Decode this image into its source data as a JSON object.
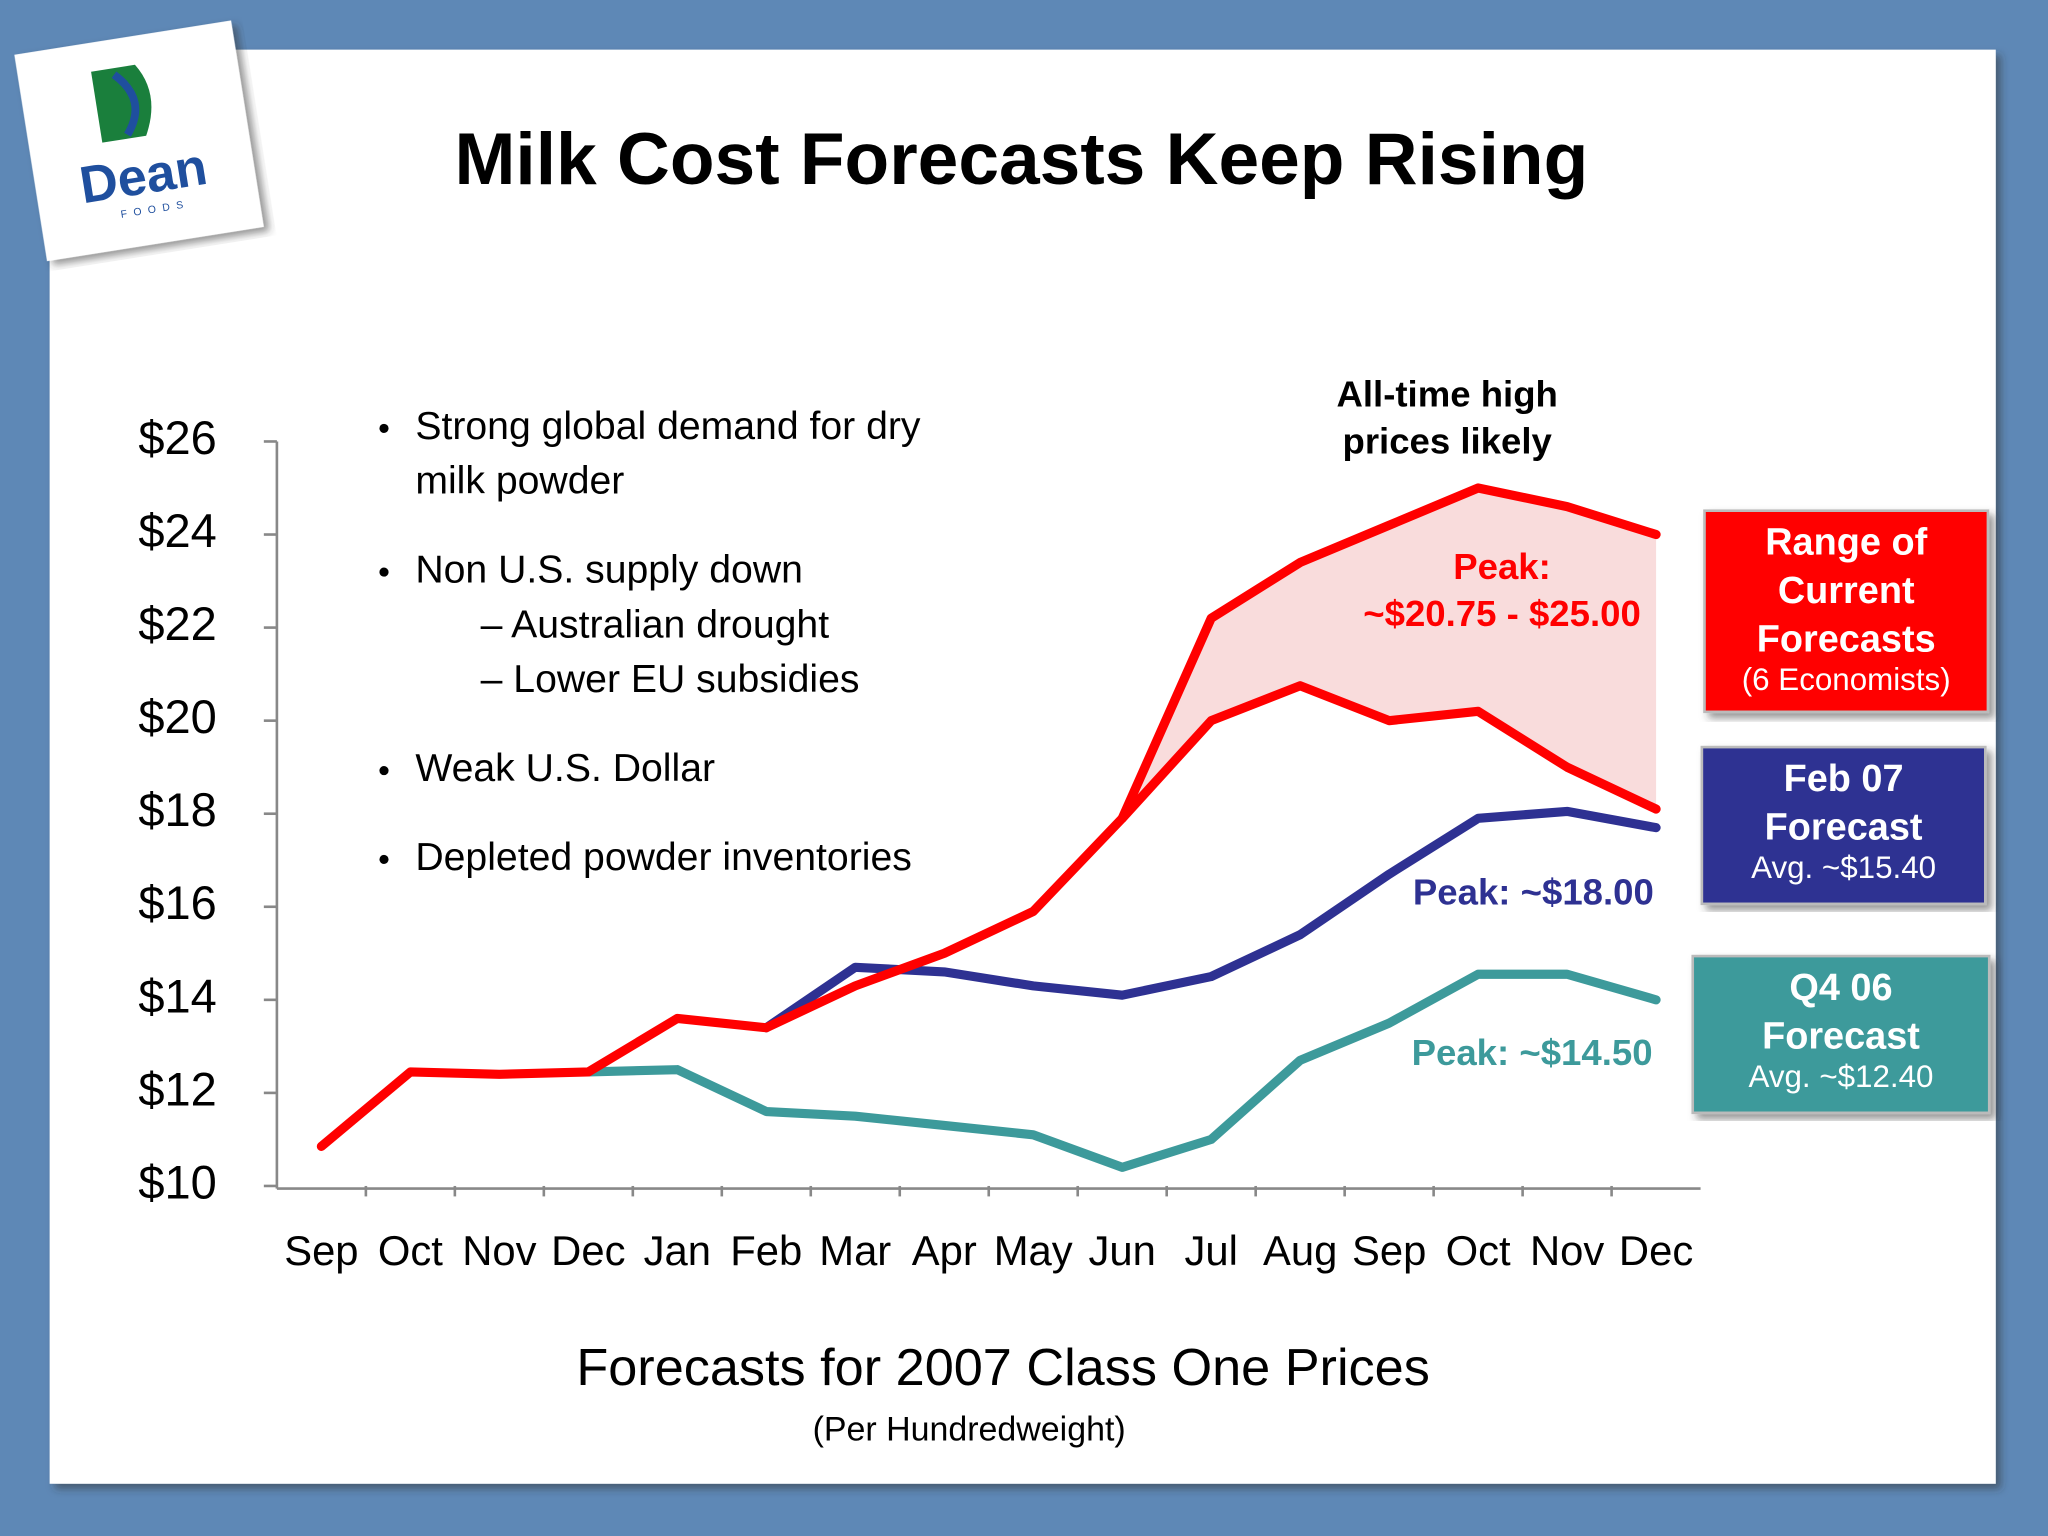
{
  "chart_data": {
    "type": "line",
    "title": "Milk Cost Forecasts Keep Rising",
    "logo": {
      "name": "Dean",
      "sub": "FOODS"
    },
    "x_title": "Forecasts for 2007 Class One Prices",
    "x_subtitle": "(Per Hundredweight)",
    "categories": [
      "Sep",
      "Oct",
      "Nov",
      "Dec",
      "Jan",
      "Feb",
      "Mar",
      "Apr",
      "May",
      "Jun",
      "Jul",
      "Aug",
      "Sep",
      "Oct",
      "Nov",
      "Dec"
    ],
    "ylim": [
      10,
      26
    ],
    "yticks": [
      {
        "value": 10,
        "label": "$10"
      },
      {
        "value": 12,
        "label": "$12"
      },
      {
        "value": 14,
        "label": "$14"
      },
      {
        "value": 16,
        "label": "$16"
      },
      {
        "value": 18,
        "label": "$18"
      },
      {
        "value": 20,
        "label": "$20"
      },
      {
        "value": 22,
        "label": "$22"
      },
      {
        "value": 24,
        "label": "$24"
      },
      {
        "value": 26,
        "label": "$26"
      }
    ],
    "series": [
      {
        "name": [
          "Range of",
          "Current",
          "Forecasts"
        ],
        "detail": "(6 Economists)",
        "color": "#ff0000",
        "area_color": "#f9dcdc",
        "values": [
          10.85,
          12.45,
          12.4,
          12.45,
          13.6,
          13.4,
          14.3,
          15.0,
          15.9,
          17.9,
          20.0,
          20.75,
          20.0,
          20.2,
          19.0,
          18.1
        ],
        "values_high": [
          null,
          null,
          null,
          null,
          null,
          null,
          null,
          null,
          null,
          17.9,
          22.2,
          23.4,
          24.2,
          25.0,
          24.6,
          24.0
        ]
      },
      {
        "name": [
          "Feb 07",
          "Forecast"
        ],
        "detail": "Avg.  ~$15.40",
        "color": "#2e3192",
        "box_color": "#2e3192",
        "values": [
          null,
          null,
          null,
          null,
          null,
          13.4,
          14.7,
          14.6,
          14.3,
          14.1,
          14.5,
          15.4,
          16.7,
          17.9,
          18.05,
          17.7
        ]
      },
      {
        "name": [
          "Q4 06",
          "Forecast"
        ],
        "detail": "Avg.  ~$12.40",
        "color": "#3d9a9b",
        "box_color": "#3d9a9b",
        "values": [
          null,
          null,
          null,
          12.45,
          12.5,
          11.6,
          11.5,
          11.3,
          11.1,
          10.4,
          11.0,
          12.7,
          13.5,
          14.55,
          14.55,
          14.0
        ]
      }
    ],
    "bullets": [
      {
        "level": 1,
        "lines": [
          "Strong global demand for dry",
          "milk powder"
        ]
      },
      {
        "level": 1,
        "lines": [
          "Non U.S. supply down"
        ]
      },
      {
        "level": 2,
        "lines": [
          "– Australian drought"
        ]
      },
      {
        "level": 2,
        "lines": [
          "– Lower EU subsidies"
        ]
      },
      {
        "level": 1,
        "lines": [
          "Weak U.S. Dollar"
        ]
      },
      {
        "level": 1,
        "lines": [
          "Depleted powder inventories"
        ]
      }
    ],
    "annotations": [
      {
        "lines": [
          "All-time high",
          "prices likely"
        ],
        "color": "#000000"
      },
      {
        "lines": [
          "Peak:",
          "~$20.75 - $25.00"
        ],
        "color": "#ff0000"
      },
      {
        "lines": [
          "Peak: ~$18.00"
        ],
        "color": "#2e3192"
      },
      {
        "lines": [
          "Peak: ~$14.50"
        ],
        "color": "#3d9a9b"
      }
    ]
  }
}
